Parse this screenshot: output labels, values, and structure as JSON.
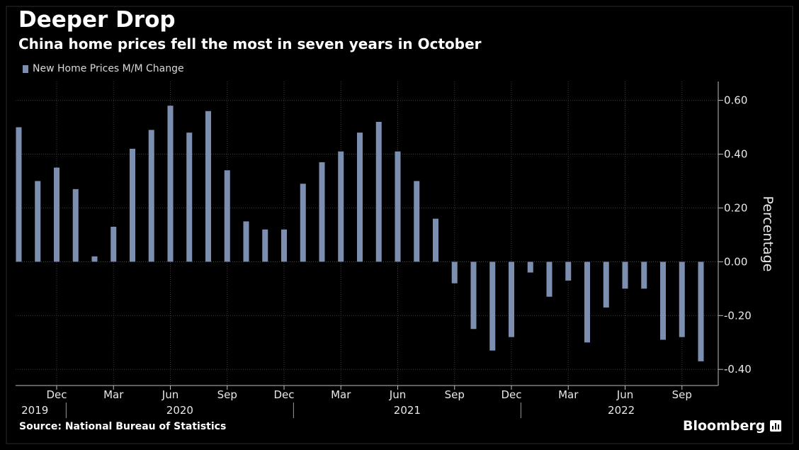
{
  "header": {
    "title": "Deeper Drop",
    "subtitle": "China home prices fell the most in seven years in October"
  },
  "legend": {
    "label": "New Home Prices M/M Change"
  },
  "footer": {
    "source": "Source: National Bureau of Statistics",
    "brand": "Bloomberg"
  },
  "colors": {
    "background": "#000000",
    "bar": "#7c8fb0",
    "grid": "#3a3a3a",
    "text": "#e8e8e8"
  },
  "chart_data": {
    "type": "bar",
    "ylabel": "Percentage",
    "ylim": [
      -0.46,
      0.67
    ],
    "yticks": [
      "0.60",
      "0.40",
      "0.20",
      "0.00",
      "-0.20",
      "-0.40"
    ],
    "y_axis_side": "right",
    "grid": true,
    "month_labels": [
      "Dec",
      "Mar",
      "Jun",
      "Sep",
      "Dec",
      "Mar",
      "Jun",
      "Sep",
      "Dec",
      "Mar",
      "Jun",
      "Sep"
    ],
    "year_labels": [
      "2019",
      "2020",
      "2021",
      "2022"
    ],
    "categories": [
      "2019-10",
      "2019-11",
      "2019-12",
      "2020-01",
      "2020-02",
      "2020-03",
      "2020-04",
      "2020-05",
      "2020-06",
      "2020-07",
      "2020-08",
      "2020-09",
      "2020-10",
      "2020-11",
      "2020-12",
      "2021-01",
      "2021-02",
      "2021-03",
      "2021-04",
      "2021-05",
      "2021-06",
      "2021-07",
      "2021-08",
      "2021-09",
      "2021-10",
      "2021-11",
      "2021-12",
      "2022-01",
      "2022-02",
      "2022-03",
      "2022-04",
      "2022-05",
      "2022-06",
      "2022-07",
      "2022-08",
      "2022-09",
      "2022-10"
    ],
    "series": [
      {
        "name": "New Home Prices M/M Change",
        "values": [
          0.5,
          0.3,
          0.35,
          0.27,
          0.02,
          0.13,
          0.42,
          0.49,
          0.58,
          0.48,
          0.56,
          0.34,
          0.15,
          0.12,
          0.12,
          0.29,
          0.37,
          0.41,
          0.48,
          0.52,
          0.41,
          0.3,
          0.16,
          -0.08,
          -0.25,
          -0.33,
          -0.28,
          -0.04,
          -0.13,
          -0.07,
          -0.3,
          -0.17,
          -0.1,
          -0.1,
          -0.29,
          -0.28,
          -0.37
        ]
      }
    ]
  }
}
